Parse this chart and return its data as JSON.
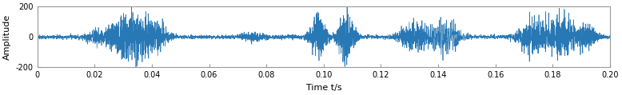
{
  "title": "",
  "xlabel": "Time t/s",
  "ylabel": "Amplitude",
  "xlim": [
    0,
    0.2
  ],
  "ylim": [
    -200,
    200
  ],
  "xticks": [
    0,
    0.02,
    0.04,
    0.06,
    0.08,
    0.1,
    0.12,
    0.14,
    0.16,
    0.18,
    0.2
  ],
  "yticks": [
    -200,
    0,
    200
  ],
  "line_color": "#2878b5",
  "background_color": "#ffffff",
  "fs": 50000,
  "duration": 0.2,
  "seed": 7,
  "noise_level": 8,
  "line_width": 0.5,
  "burst_centers": [
    0.02,
    0.028,
    0.035,
    0.042,
    0.075,
    0.098,
    0.108,
    0.132,
    0.142,
    0.173,
    0.183,
    0.192
  ],
  "burst_amplitudes": [
    40,
    80,
    120,
    80,
    40,
    120,
    170,
    100,
    120,
    100,
    120,
    80
  ],
  "burst_widths": [
    0.006,
    0.008,
    0.01,
    0.006,
    0.006,
    0.004,
    0.004,
    0.008,
    0.008,
    0.008,
    0.008,
    0.005
  ],
  "figsize": [
    7.78,
    1.19
  ],
  "dpi": 100
}
